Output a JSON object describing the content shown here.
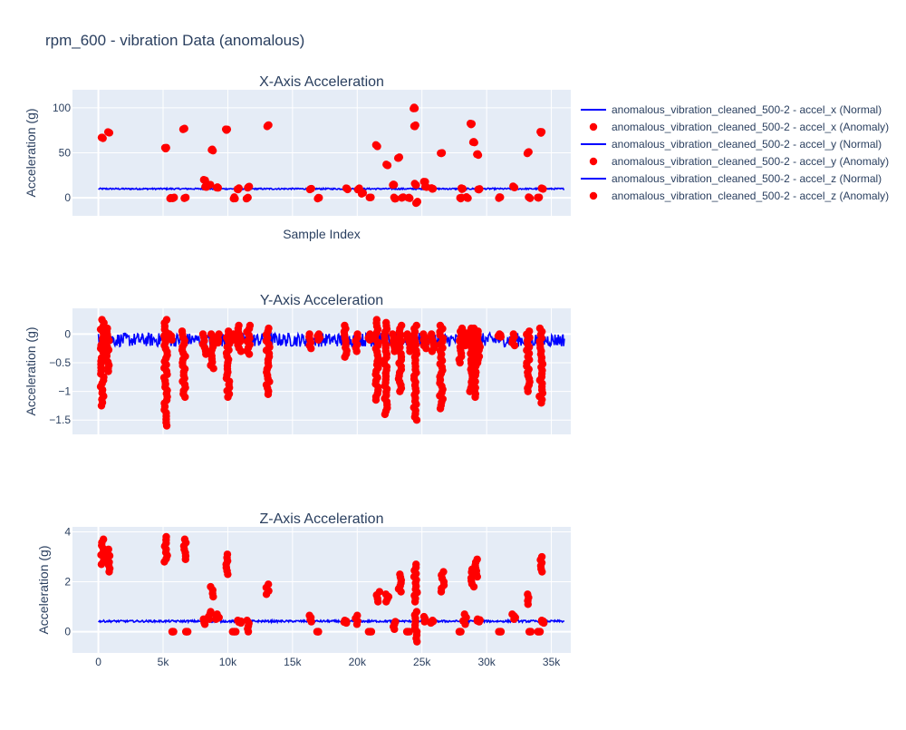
{
  "figure": {
    "title": "rpm_600 - vibration Data (anomalous)"
  },
  "legend": {
    "placement": "right",
    "items": [
      {
        "label": "anomalous_vibration_cleaned_500-2 - accel_x (Normal)",
        "kind": "line",
        "color": "#0000ff"
      },
      {
        "label": "anomalous_vibration_cleaned_500-2 - accel_x (Anomaly)",
        "kind": "marker",
        "color": "#ff0000"
      },
      {
        "label": "anomalous_vibration_cleaned_500-2 - accel_y (Normal)",
        "kind": "line",
        "color": "#0000ff"
      },
      {
        "label": "anomalous_vibration_cleaned_500-2 - accel_y (Anomaly)",
        "kind": "marker",
        "color": "#ff0000"
      },
      {
        "label": "anomalous_vibration_cleaned_500-2 - accel_z (Normal)",
        "kind": "line",
        "color": "#0000ff"
      },
      {
        "label": "anomalous_vibration_cleaned_500-2 - accel_z (Anomaly)",
        "kind": "marker",
        "color": "#ff0000"
      }
    ]
  },
  "colors": {
    "normal": "#0000ff",
    "anomaly": "#ff0000",
    "plot_bg": "#e5ecf6",
    "grid": "#ffffff",
    "text": "#2a3f5f"
  },
  "chart_data": [
    {
      "type": "scatter",
      "id": "x",
      "title": "X-Axis Acceleration",
      "xlabel": "Sample Index",
      "ylabel": "Acceleration (g)",
      "xlim": [
        -2000,
        36500
      ],
      "ylim": [
        -20,
        120
      ],
      "xticks": [
        0,
        5000,
        10000,
        15000,
        20000,
        25000,
        30000,
        35000
      ],
      "xtick_labels": [
        "",
        "",
        "",
        "",
        "",
        "",
        "",
        ""
      ],
      "yticks": [
        0,
        50,
        100
      ],
      "ytick_labels": [
        "0",
        "50",
        "100"
      ],
      "grid": true,
      "normal": {
        "x_start": 0,
        "x_end": 36000,
        "level": 10,
        "spread": 0.8
      },
      "anomaly_x": [
        300,
        800,
        5200,
        5600,
        5800,
        6600,
        6700,
        8200,
        8300,
        8600,
        8800,
        9200,
        9900,
        10500,
        10800,
        11500,
        11600,
        13100,
        16400,
        17000,
        19200,
        20100,
        20400,
        21000,
        21500,
        22300,
        22800,
        22900,
        23200,
        23500,
        24000,
        24400,
        24450,
        24500,
        24600,
        25200,
        25300,
        25800,
        26500,
        28000,
        28100,
        28500,
        28800,
        29000,
        29300,
        29400,
        31000,
        32100,
        33200,
        33300,
        34000,
        34200,
        34300
      ],
      "anomaly_y": [
        67,
        73,
        55,
        0,
        0,
        77,
        0,
        20,
        12,
        15,
        53,
        11,
        76,
        0,
        10,
        0,
        12,
        80,
        10,
        0,
        10,
        10,
        5,
        0,
        58,
        37,
        15,
        0,
        45,
        0,
        0,
        100,
        80,
        15,
        -5,
        18,
        12,
        10,
        50,
        0,
        10,
        0,
        82,
        62,
        48,
        10,
        0,
        12,
        50,
        0,
        0,
        73,
        10
      ]
    },
    {
      "type": "scatter",
      "id": "y",
      "title": "Y-Axis Acceleration",
      "xlabel": "",
      "ylabel": "Acceleration (g)",
      "xlim": [
        -2000,
        36500
      ],
      "ylim": [
        -1.75,
        0.45
      ],
      "xticks": [
        0,
        5000,
        10000,
        15000,
        20000,
        25000,
        30000,
        35000
      ],
      "xtick_labels": [
        "",
        "",
        "",
        "",
        "",
        "",
        "",
        ""
      ],
      "yticks": [
        0,
        -0.5,
        -1,
        -1.5
      ],
      "ytick_labels": [
        "0",
        "−0.5",
        "−1",
        "−1.5"
      ],
      "grid": true,
      "normal": {
        "x_start": 0,
        "x_end": 36000,
        "level": -0.1,
        "spread": 0.12
      },
      "anomaly_clusters": [
        {
          "x": 300,
          "min": -1.25,
          "max": 0.25
        },
        {
          "x": 700,
          "min": -0.65,
          "max": 0.1
        },
        {
          "x": 5200,
          "min": -1.6,
          "max": 0.25
        },
        {
          "x": 5600,
          "min": -0.1,
          "max": 0.0
        },
        {
          "x": 6600,
          "min": -1.1,
          "max": 0.05
        },
        {
          "x": 8200,
          "min": -0.35,
          "max": 0.0
        },
        {
          "x": 8800,
          "min": -0.6,
          "max": 0.0
        },
        {
          "x": 9200,
          "min": -0.15,
          "max": 0.0
        },
        {
          "x": 10000,
          "min": -1.1,
          "max": 0.05
        },
        {
          "x": 10500,
          "min": -0.1,
          "max": 0.0
        },
        {
          "x": 10900,
          "min": -0.3,
          "max": 0.15
        },
        {
          "x": 11600,
          "min": -0.35,
          "max": 0.15
        },
        {
          "x": 13100,
          "min": -1.05,
          "max": 0.1
        },
        {
          "x": 16400,
          "min": -0.25,
          "max": 0.0
        },
        {
          "x": 17000,
          "min": -0.1,
          "max": 0.0
        },
        {
          "x": 19100,
          "min": -0.4,
          "max": 0.15
        },
        {
          "x": 20000,
          "min": -0.3,
          "max": 0.0
        },
        {
          "x": 21000,
          "min": -0.1,
          "max": 0.0
        },
        {
          "x": 21500,
          "min": -1.15,
          "max": 0.25
        },
        {
          "x": 22200,
          "min": -1.4,
          "max": 0.2
        },
        {
          "x": 22800,
          "min": -0.3,
          "max": 0.0
        },
        {
          "x": 23300,
          "min": -1.0,
          "max": 0.15
        },
        {
          "x": 24000,
          "min": -0.3,
          "max": 0.0
        },
        {
          "x": 24500,
          "min": -1.5,
          "max": 0.15
        },
        {
          "x": 25200,
          "min": -0.25,
          "max": 0.0
        },
        {
          "x": 25800,
          "min": -0.3,
          "max": 0.0
        },
        {
          "x": 26500,
          "min": -1.3,
          "max": 0.15
        },
        {
          "x": 28000,
          "min": -0.5,
          "max": 0.1
        },
        {
          "x": 28300,
          "min": -0.2,
          "max": 0.05
        },
        {
          "x": 28800,
          "min": -1.0,
          "max": 0.1
        },
        {
          "x": 29100,
          "min": -1.1,
          "max": 0.1
        },
        {
          "x": 29400,
          "min": -0.5,
          "max": 0.05
        },
        {
          "x": 31000,
          "min": -0.05,
          "max": 0.0
        },
        {
          "x": 32100,
          "min": -0.2,
          "max": 0.0
        },
        {
          "x": 33200,
          "min": -1.0,
          "max": 0.05
        },
        {
          "x": 34200,
          "min": -1.2,
          "max": 0.1
        }
      ]
    },
    {
      "type": "scatter",
      "id": "z",
      "title": "Z-Axis Acceleration",
      "xlabel": "",
      "ylabel": "Acceleration (g)",
      "xlim": [
        -2000,
        36500
      ],
      "ylim": [
        -0.85,
        4.2
      ],
      "xticks": [
        0,
        5000,
        10000,
        15000,
        20000,
        25000,
        30000,
        35000
      ],
      "xtick_labels": [
        "0",
        "5k",
        "10k",
        "15k",
        "20k",
        "25k",
        "30k",
        "35k"
      ],
      "yticks": [
        0,
        2,
        4
      ],
      "ytick_labels": [
        "0",
        "2",
        "4"
      ],
      "grid": true,
      "normal": {
        "x_start": 0,
        "x_end": 36000,
        "level": 0.42,
        "spread": 0.04
      },
      "anomaly_clusters": [
        {
          "x": 300,
          "min": 2.7,
          "max": 3.7
        },
        {
          "x": 800,
          "min": 2.4,
          "max": 3.3
        },
        {
          "x": 5200,
          "min": 2.8,
          "max": 3.8
        },
        {
          "x": 5700,
          "min": 0.0,
          "max": 0.0
        },
        {
          "x": 6700,
          "min": 2.9,
          "max": 3.7
        },
        {
          "x": 6800,
          "min": 0.0,
          "max": 0.0
        },
        {
          "x": 8200,
          "min": 0.3,
          "max": 0.5
        },
        {
          "x": 8600,
          "min": 0.5,
          "max": 0.8
        },
        {
          "x": 8800,
          "min": 1.4,
          "max": 1.8
        },
        {
          "x": 9200,
          "min": 0.5,
          "max": 0.7
        },
        {
          "x": 10000,
          "min": 2.3,
          "max": 3.1
        },
        {
          "x": 10500,
          "min": 0.0,
          "max": 0.0
        },
        {
          "x": 10900,
          "min": 0.35,
          "max": 0.45
        },
        {
          "x": 11600,
          "min": 0.0,
          "max": 0.45
        },
        {
          "x": 13100,
          "min": 1.5,
          "max": 1.9
        },
        {
          "x": 16400,
          "min": 0.4,
          "max": 0.65
        },
        {
          "x": 17000,
          "min": 0.0,
          "max": 0.0
        },
        {
          "x": 19100,
          "min": 0.35,
          "max": 0.45
        },
        {
          "x": 20000,
          "min": 0.3,
          "max": 0.65
        },
        {
          "x": 21000,
          "min": 0.0,
          "max": 0.0
        },
        {
          "x": 21600,
          "min": 1.2,
          "max": 1.6
        },
        {
          "x": 22300,
          "min": 1.2,
          "max": 1.5
        },
        {
          "x": 22900,
          "min": 0.1,
          "max": 0.4
        },
        {
          "x": 23300,
          "min": 1.6,
          "max": 2.3
        },
        {
          "x": 23900,
          "min": 0.0,
          "max": 0.0
        },
        {
          "x": 24500,
          "min": -0.4,
          "max": 0.8
        },
        {
          "x": 24500,
          "min": 1.2,
          "max": 2.7
        },
        {
          "x": 25200,
          "min": 0.4,
          "max": 0.6
        },
        {
          "x": 25800,
          "min": 0.35,
          "max": 0.45
        },
        {
          "x": 26600,
          "min": 1.6,
          "max": 2.4
        },
        {
          "x": 28000,
          "min": 0.0,
          "max": 0.0
        },
        {
          "x": 28300,
          "min": 0.3,
          "max": 0.7
        },
        {
          "x": 28900,
          "min": 1.8,
          "max": 2.5
        },
        {
          "x": 29200,
          "min": 2.2,
          "max": 2.9
        },
        {
          "x": 29400,
          "min": 0.4,
          "max": 0.5
        },
        {
          "x": 31000,
          "min": 0.0,
          "max": 0.0
        },
        {
          "x": 32100,
          "min": 0.5,
          "max": 0.7
        },
        {
          "x": 33200,
          "min": 1.1,
          "max": 1.5
        },
        {
          "x": 33300,
          "min": 0.0,
          "max": 0.0
        },
        {
          "x": 34000,
          "min": 0.0,
          "max": 0.0
        },
        {
          "x": 34200,
          "min": 2.4,
          "max": 3.0
        },
        {
          "x": 34300,
          "min": 0.35,
          "max": 0.45
        }
      ]
    }
  ]
}
